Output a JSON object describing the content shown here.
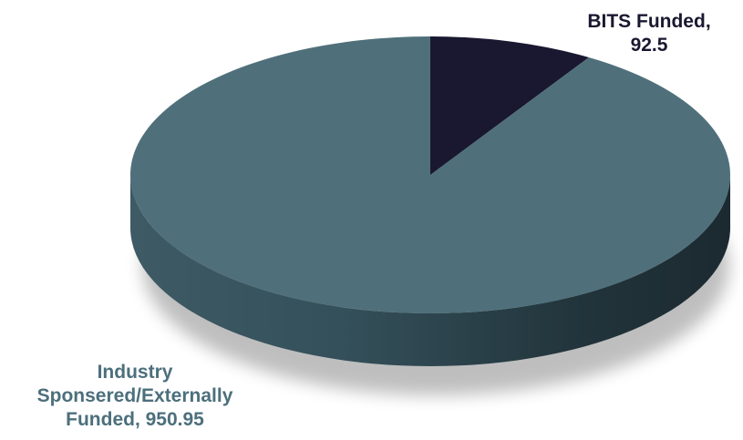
{
  "chart_data": {
    "type": "pie",
    "title": "",
    "style": "3d",
    "slices": [
      {
        "name": "BITS Funded",
        "value": 92.5,
        "label_lines": [
          "BITS Funded,",
          "92.5"
        ],
        "color": "#1a1830",
        "label_color": "#1a1830"
      },
      {
        "name": "Industry Sponsered/Externally Funded",
        "value": 950.95,
        "label_lines": [
          "Industry",
          "Sponsered/Externally",
          "Funded, 950.95"
        ],
        "color": "#4f707b",
        "label_color": "#4c6f7c"
      }
    ]
  }
}
